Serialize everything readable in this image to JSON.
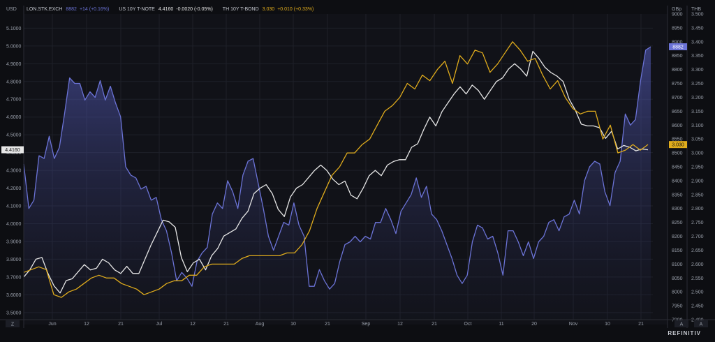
{
  "legend": [
    {
      "name": "LON.STK.EXCH",
      "value": "8882",
      "change": "+14 (+0.16%)",
      "color": "#6b73d6"
    },
    {
      "name": "US 10Y T-NOTE",
      "value": "4.4160",
      "change": "-0.0020 (-0.05%)",
      "color": "#e6e6e6"
    },
    {
      "name": "TH 10Y T-BOND",
      "value": "3.030",
      "change": "+0.010 (+0.33%)",
      "color": "#e0ac1c"
    }
  ],
  "left_axis_unit": "USD",
  "mid_axis_unit": "GBp",
  "right_axis_unit": "THB",
  "brand": "REFINITIV",
  "corner_left": "Z",
  "corner_right": "A",
  "corner_right2": "A",
  "chart_data": {
    "type": "line",
    "x_ticks": [
      "Jun",
      "12",
      "21",
      "Jul",
      "12",
      "21",
      "Aug",
      "10",
      "21",
      "Sep",
      "12",
      "21",
      "Oct",
      "11",
      "20",
      "Nov",
      "10",
      "21"
    ],
    "left_axis": {
      "label": "USD",
      "ticks": [
        "5.1000",
        "5.0000",
        "4.9000",
        "4.8000",
        "4.7000",
        "4.6000",
        "4.5000",
        "4.4000",
        "4.3000",
        "4.2000",
        "4.1000",
        "4.0000",
        "3.9000",
        "3.8000",
        "3.7000",
        "3.6000",
        "3.5000"
      ],
      "range": [
        3.46,
        5.18
      ]
    },
    "mid_axis": {
      "label": "GBp",
      "ticks": [
        "9000",
        "8950",
        "8900",
        "8850",
        "8800",
        "8750",
        "8700",
        "8650",
        "8600",
        "8550",
        "8500",
        "8450",
        "8400",
        "8350",
        "8300",
        "8250",
        "8200",
        "8150",
        "8100",
        "8050",
        "8000",
        "7950",
        "7900"
      ],
      "range": [
        7900,
        9000
      ]
    },
    "right_axis": {
      "label": "THB",
      "ticks": [
        "3.500",
        "3.450",
        "3.400",
        "3.350",
        "3.300",
        "3.250",
        "3.200",
        "3.150",
        "3.100",
        "3.050",
        "3.000",
        "2.950",
        "2.900",
        "2.850",
        "2.800",
        "2.750",
        "2.700",
        "2.650",
        "2.600",
        "2.550",
        "2.500",
        "2.450",
        "2.400"
      ],
      "range": [
        2.4,
        3.5
      ]
    },
    "current_labels": {
      "us10y": "4.4160",
      "lse": "8882",
      "th10y": "3.030"
    },
    "series": [
      {
        "name": "LON.STK.EXCH",
        "axis": "mid",
        "color": "#6b73d6",
        "values": [
          8460,
          8300,
          8330,
          8490,
          8480,
          8560,
          8480,
          8520,
          8640,
          8770,
          8750,
          8750,
          8690,
          8720,
          8700,
          8760,
          8690,
          8740,
          8680,
          8630,
          8450,
          8420,
          8410,
          8370,
          8380,
          8330,
          8340,
          8260,
          8220,
          8140,
          8040,
          8070,
          8050,
          8020,
          8110,
          8140,
          8160,
          8280,
          8320,
          8300,
          8400,
          8360,
          8300,
          8420,
          8470,
          8480,
          8390,
          8300,
          8200,
          8150,
          8200,
          8250,
          8240,
          8320,
          8240,
          8200,
          8020,
          8020,
          8080,
          8040,
          8010,
          8030,
          8110,
          8170,
          8180,
          8200,
          8180,
          8200,
          8190,
          8250,
          8250,
          8300,
          8260,
          8210,
          8290,
          8320,
          8350,
          8410,
          8340,
          8380,
          8280,
          8260,
          8220,
          8170,
          8120,
          8060,
          8030,
          8060,
          8180,
          8240,
          8230,
          8190,
          8200,
          8140,
          8060,
          8220,
          8220,
          8180,
          8130,
          8180,
          8120,
          8180,
          8200,
          8250,
          8260,
          8220,
          8270,
          8280,
          8330,
          8280,
          8400,
          8450,
          8470,
          8460,
          8360,
          8310,
          8430,
          8470,
          8640,
          8600,
          8620,
          8760,
          8870,
          8882
        ]
      },
      {
        "name": "US 10Y T-NOTE",
        "axis": "left",
        "color": "#e6e6e6",
        "values": [
          3.7,
          3.74,
          3.8,
          3.81,
          3.72,
          3.65,
          3.61,
          3.68,
          3.69,
          3.73,
          3.77,
          3.74,
          3.75,
          3.8,
          3.78,
          3.74,
          3.72,
          3.76,
          3.72,
          3.72,
          3.8,
          3.88,
          3.95,
          4.02,
          4.01,
          3.98,
          3.81,
          3.73,
          3.78,
          3.8,
          3.74,
          3.82,
          3.86,
          3.93,
          3.95,
          3.97,
          4.03,
          4.07,
          4.17,
          4.2,
          4.22,
          4.17,
          4.08,
          4.04,
          4.15,
          4.2,
          4.22,
          4.26,
          4.3,
          4.33,
          4.3,
          4.25,
          4.22,
          4.24,
          4.16,
          4.14,
          4.2,
          4.27,
          4.3,
          4.27,
          4.33,
          4.35,
          4.36,
          4.36,
          4.43,
          4.45,
          4.53,
          4.6,
          4.55,
          4.63,
          4.68,
          4.73,
          4.77,
          4.73,
          4.78,
          4.75,
          4.7,
          4.75,
          4.8,
          4.82,
          4.87,
          4.9,
          4.87,
          4.83,
          4.97,
          4.93,
          4.88,
          4.85,
          4.83,
          4.8,
          4.7,
          4.64,
          4.56,
          4.55,
          4.55,
          4.54,
          4.48,
          4.52,
          4.42,
          4.44,
          4.43,
          4.41,
          4.42,
          4.416
        ]
      },
      {
        "name": "TH 10Y T-BOND",
        "axis": "right",
        "color": "#e0ac1c",
        "values": [
          2.57,
          2.58,
          2.59,
          2.58,
          2.49,
          2.48,
          2.5,
          2.51,
          2.53,
          2.55,
          2.56,
          2.55,
          2.55,
          2.53,
          2.52,
          2.51,
          2.49,
          2.5,
          2.51,
          2.53,
          2.54,
          2.54,
          2.56,
          2.56,
          2.59,
          2.6,
          2.6,
          2.6,
          2.6,
          2.62,
          2.63,
          2.63,
          2.63,
          2.63,
          2.63,
          2.64,
          2.64,
          2.67,
          2.72,
          2.8,
          2.86,
          2.92,
          2.95,
          3.0,
          3.0,
          3.03,
          3.05,
          3.1,
          3.15,
          3.17,
          3.2,
          3.25,
          3.23,
          3.28,
          3.26,
          3.3,
          3.33,
          3.25,
          3.35,
          3.32,
          3.37,
          3.36,
          3.29,
          3.32,
          3.36,
          3.4,
          3.37,
          3.33,
          3.34,
          3.28,
          3.23,
          3.26,
          3.2,
          3.16,
          3.14,
          3.15,
          3.15,
          3.05,
          3.1,
          3.0,
          3.01,
          3.03,
          3.01,
          3.03
        ]
      }
    ]
  }
}
